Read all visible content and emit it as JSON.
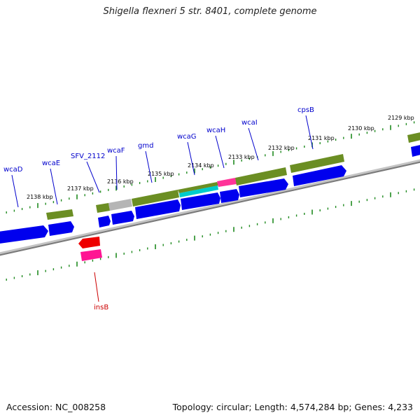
{
  "title": "Shigella flexneri 5 str. 8401, complete genome",
  "footer": {
    "accession": "Accession: NC_008258",
    "summary": "Topology: circular; Length: 4,574,284 bp; Genes: 4,233"
  },
  "colors": {
    "backbone": "#8a8a8a",
    "tick": "#1f8a1f",
    "cds": "#0000ee",
    "gene": "#6b8e23",
    "pseudo": "#b0b0b0",
    "cyan": "#00cccc",
    "magenta": "#ff3399",
    "red": "#ee0000",
    "label_blue": "#0000cc",
    "label_red": "#cc0000"
  },
  "kbp_labels": [
    "2138 kbp",
    "2137 kbp",
    "2136 kbp",
    "2135 kbp",
    "2134 kbp",
    "2133 kbp",
    "2132 kbp",
    "2131 kbp",
    "2130 kbp",
    "2129 kbp"
  ],
  "gene_labels": [
    "wcaD",
    "wcaE",
    "SFV_2112",
    "wcaF",
    "gmd",
    "wcaG",
    "wcaH",
    "wcaI",
    "cpsB",
    "insB"
  ]
}
